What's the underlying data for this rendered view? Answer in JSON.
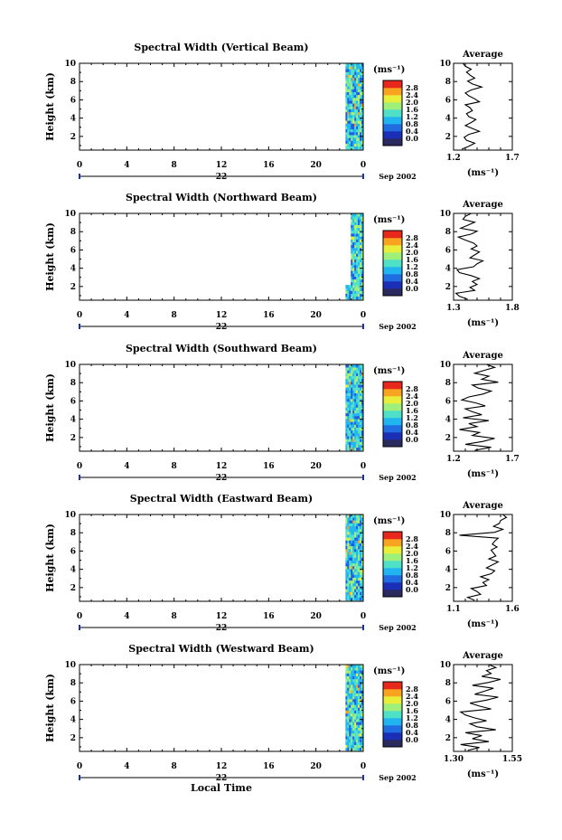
{
  "chart_data": [
    {
      "type": "heatmap",
      "title": "Spectral Width (Vertical Beam)",
      "ylabel": "Height (km)",
      "xlabel": "",
      "xticks": [
        "0",
        "4",
        "8",
        "12",
        "16",
        "20",
        "0"
      ],
      "day_label": "22",
      "month_label": "Sep 2002",
      "xlim": [
        0,
        24
      ],
      "ylim": [
        0.5,
        10
      ],
      "yticks": [
        "2",
        "4",
        "6",
        "8",
        "10"
      ],
      "data_time_range": [
        22.5,
        24
      ],
      "data_height_range": [
        0.6,
        10
      ],
      "colorbar": {
        "unit": "(ms⁻¹)",
        "ticks": [
          "0.0",
          "0.4",
          "0.8",
          "1.2",
          "1.6",
          "2.0",
          "2.4",
          "2.8"
        ]
      },
      "average": {
        "title": "Average",
        "xlabel": "(ms⁻¹)",
        "xticks": [
          "1.2",
          "1.7"
        ],
        "xlim": [
          1.2,
          1.7
        ],
        "values": [
          1.27,
          1.33,
          1.38,
          1.31,
          1.29,
          1.33,
          1.42,
          1.36,
          1.3,
          1.35,
          1.39,
          1.33,
          1.31,
          1.36,
          1.34,
          1.3,
          1.42,
          1.38,
          1.33,
          1.3,
          1.35,
          1.44,
          1.36,
          1.32,
          1.38,
          1.34,
          1.31,
          1.35,
          1.3,
          1.28
        ]
      }
    },
    {
      "type": "heatmap",
      "title": "Spectral Width (Northward Beam)",
      "ylabel": "Height (km)",
      "xlabel": "",
      "xticks": [
        "0",
        "4",
        "8",
        "12",
        "16",
        "20",
        "0"
      ],
      "day_label": "22",
      "month_label": "Sep 2002",
      "xlim": [
        0,
        24
      ],
      "ylim": [
        0.5,
        10
      ],
      "yticks": [
        "2",
        "4",
        "6",
        "8",
        "10"
      ],
      "data_time_range": [
        22.5,
        24
      ],
      "data_height_range": [
        0.6,
        10
      ],
      "colorbar": {
        "unit": "(ms⁻¹)",
        "ticks": [
          "0.0",
          "0.4",
          "0.8",
          "1.2",
          "1.6",
          "2.0",
          "2.4",
          "2.8"
        ]
      },
      "average": {
        "title": "Average",
        "xlabel": "(ms⁻¹)",
        "xticks": [
          "1.3",
          "1.8"
        ],
        "xlim": [
          1.3,
          1.8
        ],
        "values": [
          1.42,
          1.35,
          1.32,
          1.48,
          1.44,
          1.5,
          1.46,
          1.52,
          1.45,
          1.35,
          1.33,
          1.47,
          1.5,
          1.55,
          1.44,
          1.48,
          1.52,
          1.45,
          1.5,
          1.47,
          1.4,
          1.34,
          1.45,
          1.5,
          1.36,
          1.42,
          1.48,
          1.38,
          1.4,
          1.45
        ]
      }
    },
    {
      "type": "heatmap",
      "title": "Spectral Width (Southward Beam)",
      "ylabel": "Height (km)",
      "xlabel": "",
      "xticks": [
        "0",
        "4",
        "8",
        "12",
        "16",
        "20",
        "0"
      ],
      "day_label": "22",
      "month_label": "Sep 2002",
      "xlim": [
        0,
        24
      ],
      "ylim": [
        0.5,
        10
      ],
      "yticks": [
        "2",
        "4",
        "6",
        "8",
        "10"
      ],
      "data_time_range": [
        22.5,
        24
      ],
      "data_height_range": [
        0.6,
        10
      ],
      "colorbar": {
        "unit": "(ms⁻¹)",
        "ticks": [
          "0.0",
          "0.4",
          "0.8",
          "1.2",
          "1.6",
          "2.0",
          "2.4",
          "2.8"
        ]
      },
      "average": {
        "title": "Average",
        "xlabel": "(ms⁻¹)",
        "xticks": [
          "1.2",
          "1.7"
        ],
        "xlim": [
          1.2,
          1.7
        ],
        "values": [
          1.38,
          1.52,
          1.3,
          1.45,
          1.55,
          1.36,
          1.42,
          1.25,
          1.4,
          1.33,
          1.5,
          1.28,
          1.44,
          1.36,
          1.3,
          1.47,
          1.39,
          1.27,
          1.33,
          1.45,
          1.52,
          1.41,
          1.36,
          1.58,
          1.44,
          1.5,
          1.38,
          1.46,
          1.55,
          1.48
        ]
      }
    },
    {
      "type": "heatmap",
      "title": "Spectral Width (Eastward Beam)",
      "ylabel": "Height (km)",
      "xlabel": "",
      "xticks": [
        "0",
        "4",
        "8",
        "12",
        "16",
        "20",
        "0"
      ],
      "day_label": "22",
      "month_label": "Sep 2002",
      "xlim": [
        0,
        24
      ],
      "ylim": [
        0.5,
        10
      ],
      "yticks": [
        "2",
        "4",
        "6",
        "8",
        "10"
      ],
      "data_time_range": [
        22.5,
        24
      ],
      "data_height_range": [
        0.6,
        10
      ],
      "colorbar": {
        "unit": "(ms⁻¹)",
        "ticks": [
          "0.0",
          "0.4",
          "0.8",
          "1.2",
          "1.6",
          "2.0",
          "2.4",
          "2.8"
        ]
      },
      "average": {
        "title": "Average",
        "xlabel": "(ms⁻¹)",
        "xticks": [
          "1.1",
          "1.6"
        ],
        "xlim": [
          1.1,
          1.6
        ],
        "values": [
          1.28,
          1.22,
          1.33,
          1.3,
          1.25,
          1.38,
          1.35,
          1.4,
          1.33,
          1.42,
          1.45,
          1.38,
          1.43,
          1.48,
          1.4,
          1.46,
          1.44,
          1.42,
          1.47,
          1.43,
          1.45,
          1.48,
          1.15,
          1.45,
          1.52,
          1.44,
          1.49,
          1.5,
          1.55,
          1.52
        ]
      }
    },
    {
      "type": "heatmap",
      "title": "Spectral Width (Westward Beam)",
      "ylabel": "Height (km)",
      "xlabel": "Local Time",
      "xticks": [
        "0",
        "4",
        "8",
        "12",
        "16",
        "20",
        "0"
      ],
      "day_label": "22",
      "month_label": "Sep 2002",
      "xlim": [
        0,
        24
      ],
      "ylim": [
        0.5,
        10
      ],
      "yticks": [
        "2",
        "4",
        "6",
        "8",
        "10"
      ],
      "data_time_range": [
        22.5,
        24
      ],
      "data_height_range": [
        0.6,
        10
      ],
      "colorbar": {
        "unit": "(ms⁻¹)",
        "ticks": [
          "0.0",
          "0.4",
          "0.8",
          "1.2",
          "1.6",
          "2.0",
          "2.4",
          "2.8"
        ]
      },
      "average": {
        "title": "Average",
        "xlabel": "(ms⁻¹)",
        "xticks": [
          "1.30",
          "1.55"
        ],
        "xlim": [
          1.3,
          1.55
        ],
        "values": [
          1.36,
          1.41,
          1.33,
          1.45,
          1.38,
          1.42,
          1.35,
          1.48,
          1.4,
          1.37,
          1.44,
          1.39,
          1.35,
          1.33,
          1.46,
          1.41,
          1.37,
          1.44,
          1.49,
          1.39,
          1.43,
          1.47,
          1.38,
          1.45,
          1.5,
          1.42,
          1.46,
          1.44,
          1.48,
          1.45
        ]
      }
    }
  ]
}
